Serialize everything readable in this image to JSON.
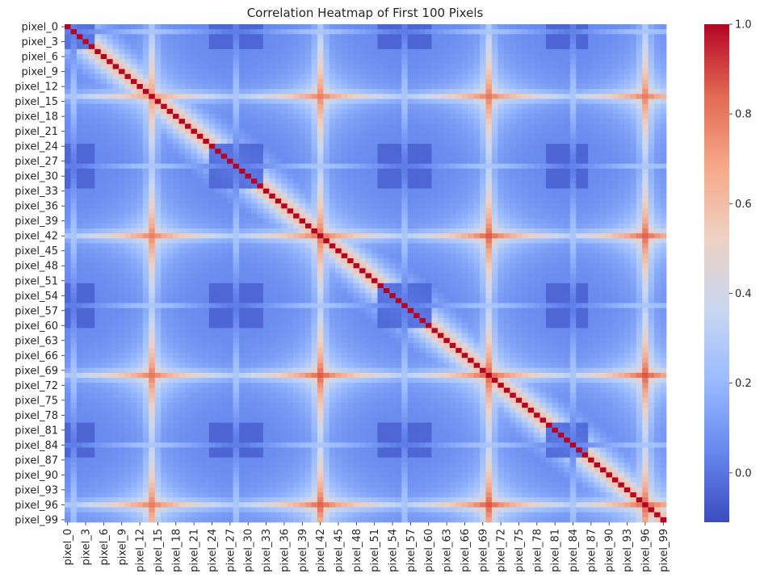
{
  "chart_data": {
    "type": "heatmap",
    "title": "Correlation Heatmap of First 100 Pixels",
    "xlabel": "",
    "ylabel": "",
    "n": 100,
    "tick_step": 3,
    "x_tick_labels": [
      "pixel_0",
      "pixel_3",
      "pixel_6",
      "pixel_9",
      "pixel_12",
      "pixel_15",
      "pixel_18",
      "pixel_21",
      "pixel_24",
      "pixel_27",
      "pixel_30",
      "pixel_33",
      "pixel_36",
      "pixel_39",
      "pixel_42",
      "pixel_45",
      "pixel_48",
      "pixel_51",
      "pixel_54",
      "pixel_57",
      "pixel_60",
      "pixel_63",
      "pixel_66",
      "pixel_69",
      "pixel_72",
      "pixel_75",
      "pixel_78",
      "pixel_81",
      "pixel_84",
      "pixel_87",
      "pixel_90",
      "pixel_93",
      "pixel_96",
      "pixel_99"
    ],
    "y_tick_labels": [
      "pixel_0",
      "pixel_3",
      "pixel_6",
      "pixel_9",
      "pixel_12",
      "pixel_15",
      "pixel_18",
      "pixel_21",
      "pixel_24",
      "pixel_27",
      "pixel_30",
      "pixel_33",
      "pixel_36",
      "pixel_39",
      "pixel_42",
      "pixel_45",
      "pixel_48",
      "pixel_51",
      "pixel_54",
      "pixel_57",
      "pixel_60",
      "pixel_63",
      "pixel_66",
      "pixel_69",
      "pixel_72",
      "pixel_75",
      "pixel_78",
      "pixel_81",
      "pixel_84",
      "pixel_87",
      "pixel_90",
      "pixel_93",
      "pixel_96",
      "pixel_99"
    ],
    "colormap": "coolwarm",
    "colorbar": {
      "vmin": -0.11,
      "vmax": 1.0,
      "ticks": [
        0.0,
        0.2,
        0.4,
        0.6,
        0.8,
        1.0
      ],
      "tick_labels": [
        "0.0",
        "0.2",
        "0.4",
        "0.6",
        "0.8",
        "1.0"
      ],
      "colors": [
        "#3b4cc0",
        "#6788ee",
        "#9abbff",
        "#c9d7f0",
        "#edd1c2",
        "#f7a889",
        "#e26952",
        "#b40426"
      ]
    },
    "pattern": {
      "group_centers": [
        14,
        42,
        70,
        96
      ],
      "isolated_pixels": [
        1,
        28,
        56,
        84
      ],
      "group_strength": [
        0.68,
        0.78,
        0.82,
        0.8
      ]
    }
  }
}
